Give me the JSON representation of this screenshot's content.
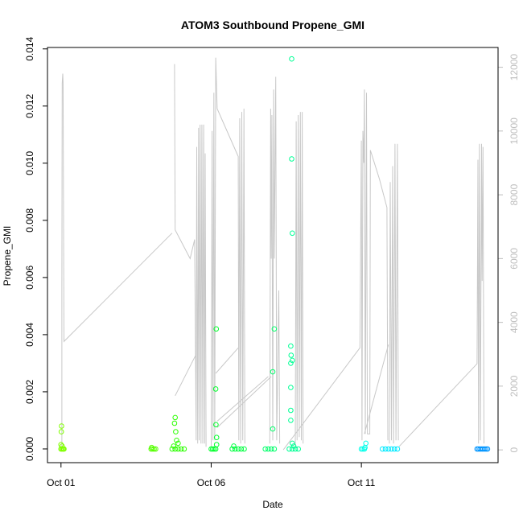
{
  "chart_data": {
    "type": "scatter",
    "title": "ATOM3 Southbound Propene_GMI",
    "xlabel": "Date",
    "ylabel": "Propene_GMI",
    "x_unit": "days",
    "x_ticks": [
      {
        "value": 0,
        "label": "Oct 01"
      },
      {
        "value": 5,
        "label": "Oct 06"
      },
      {
        "value": 10,
        "label": "Oct 11"
      }
    ],
    "xlim": [
      -0.45,
      14.55
    ],
    "ylim": [
      -0.00048,
      0.01405
    ],
    "y_ticks": [
      0,
      0.002,
      0.004,
      0.006,
      0.008,
      0.01,
      0.012,
      0.014
    ],
    "y_tick_labels": [
      "0.000",
      "0.002",
      "0.004",
      "0.006",
      "0.008",
      "0.010",
      "0.012",
      "0.014"
    ],
    "y2_ticks": [
      0,
      2000,
      4000,
      6000,
      8000,
      10000,
      12000
    ],
    "y2_tick_labels": [
      "0",
      "2000",
      "4000",
      "6000",
      "8000",
      "10000",
      "12000"
    ],
    "y2lim": [
      -400,
      12620
    ],
    "altitude_color": "#c8c8c8",
    "altitude_segments": [
      [
        [
          0.03,
          0
        ],
        [
          0.03,
          5000
        ],
        [
          0.04,
          11500
        ],
        [
          0.06,
          11800
        ],
        [
          0.07,
          11500
        ],
        [
          0.1,
          3400
        ],
        [
          3.7,
          6800
        ]
      ],
      [
        [
          3.78,
          12100
        ],
        [
          3.8,
          6900
        ],
        [
          4.3,
          6000
        ],
        [
          4.45,
          6600
        ],
        [
          4.5,
          300
        ],
        [
          4.52,
          9500
        ],
        [
          4.55,
          200
        ],
        [
          4.58,
          10100
        ],
        [
          4.6,
          300
        ],
        [
          4.63,
          10200
        ],
        [
          4.66,
          200
        ],
        [
          4.69,
          10200
        ],
        [
          4.72,
          200
        ],
        [
          4.75,
          10200
        ],
        [
          4.78,
          200
        ],
        [
          4.8,
          9300
        ],
        [
          4.83,
          100
        ]
      ],
      [
        [
          3.8,
          1700
        ],
        [
          4.5,
          3000
        ]
      ],
      [
        [
          5.0,
          100
        ],
        [
          5.03,
          10000
        ],
        [
          5.06,
          300
        ],
        [
          5.09,
          11200
        ],
        [
          5.12,
          300
        ],
        [
          5.15,
          12300
        ],
        [
          5.2,
          10700
        ],
        [
          5.9,
          9200
        ],
        [
          5.92,
          300
        ],
        [
          5.95,
          10400
        ],
        [
          5.98,
          200
        ],
        [
          6.02,
          10600
        ],
        [
          6.05,
          300
        ],
        [
          6.09,
          10700
        ],
        [
          6.12,
          200
        ]
      ],
      [
        [
          5.15,
          2400
        ],
        [
          5.9,
          3200
        ]
      ],
      [
        [
          5.2,
          900
        ],
        [
          6.9,
          2300
        ]
      ],
      [
        [
          6.95,
          200
        ],
        [
          6.98,
          10700
        ],
        [
          7.0,
          6000
        ],
        [
          7.02,
          10500
        ],
        [
          7.05,
          300
        ],
        [
          7.08,
          11300
        ],
        [
          7.1,
          6000
        ],
        [
          7.15,
          11700
        ],
        [
          7.18,
          300
        ],
        [
          7.25,
          5000
        ],
        [
          7.28,
          200
        ]
      ],
      [
        [
          5.2,
          700
        ],
        [
          7.0,
          2300
        ]
      ],
      [
        [
          7.8,
          100
        ],
        [
          7.83,
          10300
        ],
        [
          7.86,
          300
        ],
        [
          7.9,
          10500
        ],
        [
          7.93,
          400
        ],
        [
          7.97,
          10600
        ],
        [
          8.0,
          300
        ],
        [
          8.03,
          10600
        ],
        [
          8.06,
          200
        ]
      ],
      [
        [
          7.4,
          0
        ],
        [
          9.95,
          3200
        ],
        [
          10.0,
          9700
        ],
        [
          10.02,
          300
        ],
        [
          10.05,
          10000
        ],
        [
          10.08,
          9000
        ],
        [
          10.1,
          11300
        ],
        [
          10.13,
          500
        ],
        [
          10.17,
          11200
        ],
        [
          10.2,
          500
        ],
        [
          10.28,
          500
        ],
        [
          10.3,
          9400
        ],
        [
          10.6,
          8500
        ],
        [
          10.85,
          7600
        ],
        [
          10.88,
          300
        ]
      ],
      [
        [
          10.1,
          500
        ],
        [
          10.9,
          3300
        ]
      ],
      [
        [
          10.93,
          200
        ],
        [
          10.96,
          8400
        ],
        [
          11.0,
          300
        ],
        [
          11.04,
          8900
        ],
        [
          11.07,
          200
        ],
        [
          11.12,
          9600
        ],
        [
          11.15,
          300
        ],
        [
          11.2,
          9600
        ],
        [
          11.23,
          300
        ]
      ],
      [
        [
          11.25,
          100
        ],
        [
          13.85,
          2700
        ],
        [
          13.88,
          9100
        ],
        [
          13.9,
          200
        ],
        [
          13.93,
          9600
        ],
        [
          13.96,
          300
        ],
        [
          14.0,
          9600
        ],
        [
          14.02,
          5300
        ],
        [
          14.05,
          9500
        ],
        [
          14.08,
          200
        ]
      ]
    ],
    "points": [
      {
        "x": 0.0,
        "y": 0.0,
        "color": "#80ff00"
      },
      {
        "x": 0.02,
        "y": 0.0,
        "color": "#80ff00"
      },
      {
        "x": 0.04,
        "y": 0.0001,
        "color": "#80ff00"
      },
      {
        "x": 0.06,
        "y": 0.0,
        "color": "#80ff00"
      },
      {
        "x": 0.08,
        "y": 0.0,
        "color": "#80ff00"
      },
      {
        "x": 0.1,
        "y": 0.0,
        "color": "#80ff00"
      },
      {
        "x": 0.01,
        "y": 0.0006,
        "color": "#80ff00"
      },
      {
        "x": 0.02,
        "y": 0.0008,
        "color": "#80ff00"
      },
      {
        "x": 0.0,
        "y": 0.00015,
        "color": "#80ff00"
      },
      {
        "x": 3.0,
        "y": 0.0,
        "color": "#55ff00"
      },
      {
        "x": 3.05,
        "y": 0.0,
        "color": "#55ff00"
      },
      {
        "x": 3.1,
        "y": 0.0,
        "color": "#55ff00"
      },
      {
        "x": 3.15,
        "y": 0.0,
        "color": "#55ff00"
      },
      {
        "x": 3.02,
        "y": 5e-05,
        "color": "#55ff00"
      },
      {
        "x": 3.7,
        "y": 0.0,
        "color": "#2bff00"
      },
      {
        "x": 3.8,
        "y": 0.0,
        "color": "#2bff00"
      },
      {
        "x": 3.9,
        "y": 0.0,
        "color": "#2bff00"
      },
      {
        "x": 4.0,
        "y": 0.0,
        "color": "#2bff00"
      },
      {
        "x": 4.1,
        "y": 0.0,
        "color": "#2bff00"
      },
      {
        "x": 3.75,
        "y": 0.0001,
        "color": "#2bff00"
      },
      {
        "x": 3.85,
        "y": 0.0003,
        "color": "#2bff00"
      },
      {
        "x": 3.82,
        "y": 0.0006,
        "color": "#2bff00"
      },
      {
        "x": 3.78,
        "y": 0.0009,
        "color": "#2bff00"
      },
      {
        "x": 3.8,
        "y": 0.0011,
        "color": "#2bff00"
      },
      {
        "x": 3.9,
        "y": 0.0002,
        "color": "#2bff00"
      },
      {
        "x": 5.0,
        "y": 0.0,
        "color": "#00ff2b"
      },
      {
        "x": 5.05,
        "y": 0.0,
        "color": "#00ff2b"
      },
      {
        "x": 5.1,
        "y": 0.0,
        "color": "#00ff2b"
      },
      {
        "x": 5.15,
        "y": 0.0,
        "color": "#00ff2b"
      },
      {
        "x": 5.18,
        "y": 0.00015,
        "color": "#00ff2b"
      },
      {
        "x": 5.18,
        "y": 0.0004,
        "color": "#00ff2b"
      },
      {
        "x": 5.16,
        "y": 0.00085,
        "color": "#00ff2b"
      },
      {
        "x": 5.15,
        "y": 0.0021,
        "color": "#00ff2b"
      },
      {
        "x": 5.17,
        "y": 0.0042,
        "color": "#00ff2b"
      },
      {
        "x": 5.7,
        "y": 0.0,
        "color": "#00ff40"
      },
      {
        "x": 5.8,
        "y": 0.0,
        "color": "#00ff40"
      },
      {
        "x": 5.9,
        "y": 0.0,
        "color": "#00ff40"
      },
      {
        "x": 6.0,
        "y": 0.0,
        "color": "#00ff40"
      },
      {
        "x": 6.1,
        "y": 0.0,
        "color": "#00ff40"
      },
      {
        "x": 5.75,
        "y": 0.0001,
        "color": "#00ff40"
      },
      {
        "x": 6.8,
        "y": 0.0,
        "color": "#00ff6a"
      },
      {
        "x": 6.9,
        "y": 0.0,
        "color": "#00ff6a"
      },
      {
        "x": 7.0,
        "y": 0.0,
        "color": "#00ff6a"
      },
      {
        "x": 7.1,
        "y": 0.0,
        "color": "#00ff6a"
      },
      {
        "x": 7.05,
        "y": 0.0007,
        "color": "#00ff6a"
      },
      {
        "x": 7.05,
        "y": 0.0027,
        "color": "#00ff6a"
      },
      {
        "x": 7.1,
        "y": 0.0042,
        "color": "#00ff6a"
      },
      {
        "x": 7.6,
        "y": 0.0,
        "color": "#00ff95"
      },
      {
        "x": 7.7,
        "y": 0.0,
        "color": "#00ff95"
      },
      {
        "x": 7.8,
        "y": 0.0,
        "color": "#00ff95"
      },
      {
        "x": 7.9,
        "y": 0.0,
        "color": "#00ff95"
      },
      {
        "x": 7.7,
        "y": 0.0002,
        "color": "#00ff95"
      },
      {
        "x": 7.75,
        "y": 0.0001,
        "color": "#00ff95"
      },
      {
        "x": 7.65,
        "y": 0.001,
        "color": "#00ff95"
      },
      {
        "x": 7.65,
        "y": 0.00135,
        "color": "#00ff95"
      },
      {
        "x": 7.65,
        "y": 0.00215,
        "color": "#00ff95"
      },
      {
        "x": 7.65,
        "y": 0.003,
        "color": "#00ff95"
      },
      {
        "x": 7.7,
        "y": 0.0031,
        "color": "#00ff95"
      },
      {
        "x": 7.66,
        "y": 0.00328,
        "color": "#00ff95"
      },
      {
        "x": 7.65,
        "y": 0.0036,
        "color": "#00ff95"
      },
      {
        "x": 7.7,
        "y": 0.00755,
        "color": "#00ff95"
      },
      {
        "x": 7.68,
        "y": 0.01015,
        "color": "#00ff95"
      },
      {
        "x": 7.68,
        "y": 0.01365,
        "color": "#00ff95"
      },
      {
        "x": 10.0,
        "y": 0.0,
        "color": "#00ffea"
      },
      {
        "x": 10.05,
        "y": 0.0,
        "color": "#00ffea"
      },
      {
        "x": 10.1,
        "y": 0.0,
        "color": "#00ffea"
      },
      {
        "x": 10.12,
        "y": 5e-05,
        "color": "#00ffea"
      },
      {
        "x": 10.15,
        "y": 0.0002,
        "color": "#00ffea"
      },
      {
        "x": 10.7,
        "y": 0.0,
        "color": "#00eaff"
      },
      {
        "x": 10.8,
        "y": 0.0,
        "color": "#00eaff"
      },
      {
        "x": 10.9,
        "y": 0.0,
        "color": "#00eaff"
      },
      {
        "x": 11.0,
        "y": 0.0,
        "color": "#00eaff"
      },
      {
        "x": 11.1,
        "y": 0.0,
        "color": "#00eaff"
      },
      {
        "x": 11.2,
        "y": 0.0,
        "color": "#00eaff"
      },
      {
        "x": 13.85,
        "y": 0.0,
        "color": "#0095ff"
      },
      {
        "x": 13.9,
        "y": 0.0,
        "color": "#0095ff"
      },
      {
        "x": 13.95,
        "y": 0.0,
        "color": "#0095ff"
      },
      {
        "x": 14.0,
        "y": 0.0,
        "color": "#0095ff"
      },
      {
        "x": 14.05,
        "y": 0.0,
        "color": "#0095ff"
      },
      {
        "x": 14.1,
        "y": 0.0,
        "color": "#0095ff"
      },
      {
        "x": 14.15,
        "y": 0.0,
        "color": "#0095ff"
      },
      {
        "x": 14.2,
        "y": 0.0,
        "color": "#0095ff"
      }
    ]
  }
}
